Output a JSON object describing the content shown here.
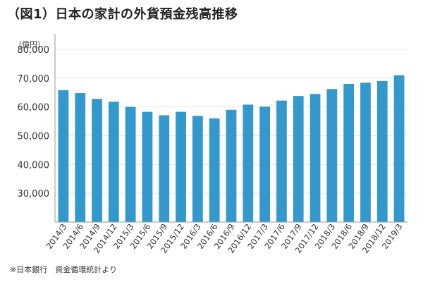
{
  "title": "（図1）日本の家計の外貨預金残高推移",
  "unit_label": "（億円）",
  "source": "※日本銀行　資金循環統計より",
  "colors": {
    "bar": "#3399cc",
    "axis": "#999999",
    "grid": "#e6e6e6"
  },
  "chart_data": {
    "type": "bar",
    "title": "（図1）日本の家計の外貨預金残高推移",
    "xlabel": "",
    "ylabel": "（億円）",
    "ylim": [
      20000,
      80000
    ],
    "yticks": [
      30000,
      40000,
      50000,
      60000,
      70000,
      80000
    ],
    "ytick_labels": [
      "30,000",
      "40,000",
      "50,000",
      "60,000",
      "70,000",
      "80,000"
    ],
    "grid": true,
    "categories": [
      "2014/3",
      "2014/6",
      "2014/9",
      "2014/12",
      "2015/3",
      "2015/6",
      "2015/9",
      "2015/12",
      "2016/3",
      "2016/6",
      "2016/9",
      "2016/12",
      "2017/3",
      "2017/6",
      "2017/9",
      "2017/12",
      "2018/3",
      "2018/6",
      "2018/9",
      "2018/12",
      "2019/3"
    ],
    "values": [
      65800,
      64800,
      62800,
      61800,
      60000,
      58300,
      57100,
      58300,
      56900,
      56000,
      59000,
      60800,
      60100,
      62200,
      63800,
      64500,
      66200,
      68000,
      68400,
      69000,
      71000
    ]
  }
}
